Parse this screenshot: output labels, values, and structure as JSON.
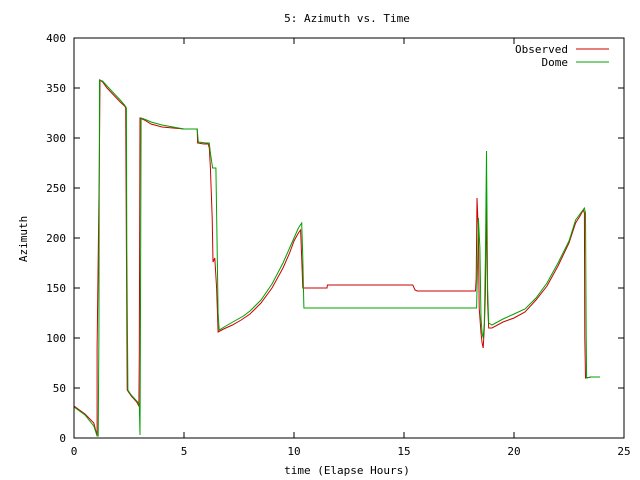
{
  "chart_data": {
    "type": "line",
    "title": "5: Azimuth vs. Time",
    "xlabel": "time (Elapse Hours)",
    "ylabel": "Azimuth",
    "xlim": [
      0,
      25
    ],
    "ylim": [
      0,
      400
    ],
    "xticks": [
      0,
      5,
      10,
      15,
      20,
      25
    ],
    "yticks": [
      0,
      50,
      100,
      150,
      200,
      250,
      300,
      350,
      400
    ],
    "grid": false,
    "legend_position": "top-right",
    "series": [
      {
        "name": "Observed",
        "color": "#cc0000",
        "points": [
          [
            0.0,
            32
          ],
          [
            0.5,
            24
          ],
          [
            0.9,
            15
          ],
          [
            1.05,
            2
          ],
          [
            1.05,
            90
          ],
          [
            1.15,
            270
          ],
          [
            1.18,
            358
          ],
          [
            1.3,
            356
          ],
          [
            1.5,
            350
          ],
          [
            1.8,
            343
          ],
          [
            2.1,
            336
          ],
          [
            2.3,
            332
          ],
          [
            2.35,
            330
          ],
          [
            2.38,
            190
          ],
          [
            2.42,
            48
          ],
          [
            2.6,
            42
          ],
          [
            2.85,
            36
          ],
          [
            2.95,
            32
          ],
          [
            2.97,
            85
          ],
          [
            3.0,
            320
          ],
          [
            3.2,
            318
          ],
          [
            3.5,
            314
          ],
          [
            4.0,
            311
          ],
          [
            4.5,
            310
          ],
          [
            5.0,
            309
          ],
          [
            5.5,
            309
          ],
          [
            5.6,
            309
          ],
          [
            5.62,
            295
          ],
          [
            5.9,
            294
          ],
          [
            6.1,
            294
          ],
          [
            6.15,
            290
          ],
          [
            6.2,
            270
          ],
          [
            6.28,
            220
          ],
          [
            6.32,
            176
          ],
          [
            6.4,
            180
          ],
          [
            6.48,
            150
          ],
          [
            6.55,
            106
          ],
          [
            6.8,
            109
          ],
          [
            7.2,
            113
          ],
          [
            7.6,
            118
          ],
          [
            8.0,
            124
          ],
          [
            8.5,
            135
          ],
          [
            9.0,
            150
          ],
          [
            9.5,
            170
          ],
          [
            9.8,
            185
          ],
          [
            10.0,
            197
          ],
          [
            10.2,
            205
          ],
          [
            10.3,
            208
          ],
          [
            10.35,
            180
          ],
          [
            10.4,
            150
          ],
          [
            11.0,
            150
          ],
          [
            11.5,
            150
          ],
          [
            11.52,
            153
          ],
          [
            12.0,
            153
          ],
          [
            13.0,
            153
          ],
          [
            14.0,
            153
          ],
          [
            15.0,
            153
          ],
          [
            15.4,
            153
          ],
          [
            15.5,
            148
          ],
          [
            15.6,
            147
          ],
          [
            16.0,
            147
          ],
          [
            17.0,
            147
          ],
          [
            18.0,
            147
          ],
          [
            18.25,
            147
          ],
          [
            18.28,
            160
          ],
          [
            18.32,
            240
          ],
          [
            18.38,
            205
          ],
          [
            18.42,
            130
          ],
          [
            18.5,
            105
          ],
          [
            18.55,
            95
          ],
          [
            18.6,
            90
          ],
          [
            18.65,
            110
          ],
          [
            18.7,
            145
          ],
          [
            18.75,
            240
          ],
          [
            18.8,
            135
          ],
          [
            18.85,
            110
          ],
          [
            19.0,
            110
          ],
          [
            19.5,
            116
          ],
          [
            20.0,
            120
          ],
          [
            20.5,
            126
          ],
          [
            21.0,
            138
          ],
          [
            21.5,
            152
          ],
          [
            22.0,
            172
          ],
          [
            22.5,
            195
          ],
          [
            22.8,
            215
          ],
          [
            23.0,
            222
          ],
          [
            23.15,
            228
          ],
          [
            23.2,
            225
          ],
          [
            23.22,
            100
          ],
          [
            23.25,
            60
          ],
          [
            23.5,
            61
          ],
          [
            23.9,
            61
          ]
        ]
      },
      {
        "name": "Dome",
        "color": "#00a000",
        "points": [
          [
            0.0,
            31
          ],
          [
            0.5,
            23
          ],
          [
            0.9,
            12
          ],
          [
            1.05,
            2
          ],
          [
            1.1,
            2
          ],
          [
            1.13,
            100
          ],
          [
            1.16,
            358
          ],
          [
            1.3,
            357
          ],
          [
            1.5,
            352
          ],
          [
            1.8,
            345
          ],
          [
            2.1,
            338
          ],
          [
            2.3,
            333
          ],
          [
            2.38,
            330
          ],
          [
            2.4,
            190
          ],
          [
            2.45,
            48
          ],
          [
            2.6,
            43
          ],
          [
            2.85,
            37
          ],
          [
            2.97,
            34
          ],
          [
            3.0,
            3
          ],
          [
            3.02,
            100
          ],
          [
            3.05,
            320
          ],
          [
            3.3,
            318
          ],
          [
            3.5,
            316
          ],
          [
            4.0,
            313
          ],
          [
            4.5,
            311
          ],
          [
            5.0,
            309
          ],
          [
            5.5,
            309
          ],
          [
            5.6,
            309
          ],
          [
            5.65,
            296
          ],
          [
            6.0,
            295
          ],
          [
            6.15,
            295
          ],
          [
            6.2,
            285
          ],
          [
            6.3,
            270
          ],
          [
            6.45,
            270
          ],
          [
            6.5,
            200
          ],
          [
            6.55,
            125
          ],
          [
            6.6,
            108
          ],
          [
            6.9,
            112
          ],
          [
            7.3,
            117
          ],
          [
            7.7,
            122
          ],
          [
            8.0,
            127
          ],
          [
            8.5,
            138
          ],
          [
            9.0,
            154
          ],
          [
            9.5,
            175
          ],
          [
            9.8,
            190
          ],
          [
            10.0,
            200
          ],
          [
            10.2,
            210
          ],
          [
            10.35,
            215
          ],
          [
            10.4,
            180
          ],
          [
            10.45,
            130
          ],
          [
            11.0,
            130
          ],
          [
            12.0,
            130
          ],
          [
            13.0,
            130
          ],
          [
            14.0,
            130
          ],
          [
            15.0,
            130
          ],
          [
            16.0,
            130
          ],
          [
            17.0,
            130
          ],
          [
            18.0,
            130
          ],
          [
            18.3,
            130
          ],
          [
            18.35,
            180
          ],
          [
            18.38,
            220
          ],
          [
            18.45,
            190
          ],
          [
            18.5,
            120
          ],
          [
            18.55,
            105
          ],
          [
            18.6,
            100
          ],
          [
            18.65,
            115
          ],
          [
            18.7,
            180
          ],
          [
            18.75,
            287
          ],
          [
            18.8,
            150
          ],
          [
            18.85,
            115
          ],
          [
            19.0,
            113
          ],
          [
            19.5,
            119
          ],
          [
            20.0,
            124
          ],
          [
            20.5,
            129
          ],
          [
            21.0,
            140
          ],
          [
            21.5,
            155
          ],
          [
            22.0,
            175
          ],
          [
            22.5,
            197
          ],
          [
            22.8,
            218
          ],
          [
            23.0,
            224
          ],
          [
            23.2,
            230
          ],
          [
            23.25,
            225
          ],
          [
            23.28,
            100
          ],
          [
            23.3,
            60
          ],
          [
            23.5,
            61
          ],
          [
            23.9,
            61
          ]
        ]
      }
    ]
  }
}
